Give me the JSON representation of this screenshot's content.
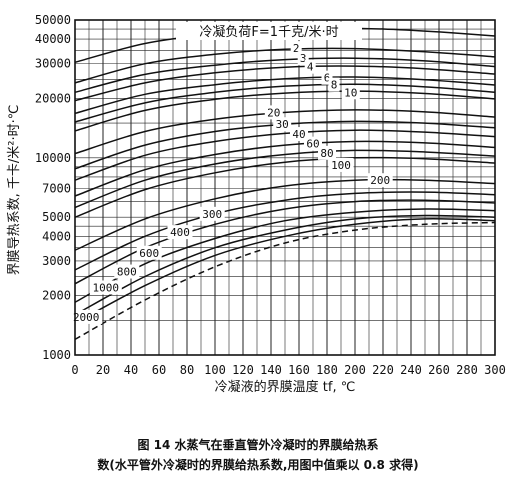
{
  "chart_data": {
    "type": "line",
    "title": "冷凝负荷F=1千克/米·时",
    "xlabel": "冷凝液的界膜温度 tf, ℃",
    "ylabel": "界膜导热系数, 千卡/米²·时·℃",
    "y_scale": "log",
    "xlim": [
      0,
      300
    ],
    "ylim": [
      1000,
      50000
    ],
    "x_ticks": [
      "0",
      "20",
      "40",
      "60",
      "80",
      "100",
      "120",
      "140",
      "160",
      "180",
      "200",
      "220",
      "240",
      "260",
      "280",
      "300"
    ],
    "y_ticks": [
      {
        "value": 1000,
        "label": "1000"
      },
      {
        "value": 2000,
        "label": "2000"
      },
      {
        "value": 3000,
        "label": "3000"
      },
      {
        "value": 4000,
        "label": "4000"
      },
      {
        "value": 5000,
        "label": "5000"
      },
      {
        "value": 7000,
        "label": "7000"
      },
      {
        "value": 10000,
        "label": "10000"
      },
      {
        "value": 20000,
        "label": "20000"
      },
      {
        "value": 30000,
        "label": "30000"
      },
      {
        "value": 40000,
        "label": "40000"
      },
      {
        "value": 50000,
        "label": "50000"
      }
    ],
    "grid": true,
    "series": [
      {
        "name": "1",
        "style": "solid",
        "x": [
          0,
          50,
          100,
          150,
          180,
          220,
          260,
          300
        ],
        "y": [
          30500,
          38000,
          42500,
          45000,
          45500,
          45000,
          43500,
          41500
        ]
      },
      {
        "name": "2",
        "style": "solid",
        "x": [
          0,
          50,
          100,
          150,
          200,
          250,
          300
        ],
        "y": [
          24000,
          30000,
          33500,
          35500,
          35800,
          34500,
          32500
        ]
      },
      {
        "name": "3",
        "style": "solid",
        "x": [
          0,
          50,
          100,
          150,
          200,
          250,
          300
        ],
        "y": [
          21500,
          26500,
          29500,
          31500,
          32000,
          31000,
          29000
        ]
      },
      {
        "name": "4",
        "style": "solid",
        "x": [
          0,
          50,
          100,
          150,
          200,
          250,
          300
        ],
        "y": [
          19500,
          24000,
          27000,
          28800,
          29200,
          28300,
          26600
        ]
      },
      {
        "name": "6",
        "style": "solid",
        "x": [
          0,
          50,
          100,
          150,
          200,
          250,
          300
        ],
        "y": [
          16800,
          21000,
          23500,
          25200,
          25700,
          24900,
          23400
        ]
      },
      {
        "name": "8",
        "style": "solid",
        "x": [
          0,
          50,
          100,
          150,
          200,
          250,
          300
        ],
        "y": [
          15200,
          19000,
          21500,
          23100,
          23600,
          22900,
          21500
        ]
      },
      {
        "name": "10",
        "style": "solid",
        "x": [
          0,
          50,
          100,
          150,
          200,
          250,
          300
        ],
        "y": [
          13700,
          17400,
          19800,
          21300,
          21800,
          21200,
          19900
        ]
      },
      {
        "name": "20",
        "style": "solid",
        "x": [
          0,
          50,
          100,
          150,
          200,
          250,
          300
        ],
        "y": [
          10500,
          13600,
          15700,
          17000,
          17500,
          17100,
          16100
        ]
      },
      {
        "name": "30",
        "style": "solid",
        "x": [
          0,
          50,
          100,
          150,
          200,
          250,
          300
        ],
        "y": [
          8800,
          11600,
          13600,
          14800,
          15300,
          15000,
          14200
        ]
      },
      {
        "name": "40",
        "style": "solid",
        "x": [
          0,
          50,
          100,
          150,
          200,
          250,
          300
        ],
        "y": [
          7700,
          10300,
          12100,
          13300,
          13800,
          13500,
          12800
        ]
      },
      {
        "name": "60",
        "style": "solid",
        "x": [
          0,
          50,
          100,
          150,
          200,
          250,
          300
        ],
        "y": [
          6400,
          8700,
          10400,
          11600,
          12100,
          11900,
          11300
        ]
      },
      {
        "name": "80",
        "style": "solid",
        "x": [
          0,
          50,
          100,
          150,
          200,
          250,
          300
        ],
        "y": [
          5600,
          7700,
          9300,
          10400,
          10900,
          10700,
          10200
        ]
      },
      {
        "name": "100",
        "style": "solid",
        "x": [
          0,
          50,
          100,
          150,
          200,
          250,
          300
        ],
        "y": [
          5000,
          6900,
          8400,
          9500,
          10000,
          9900,
          9400
        ]
      },
      {
        "name": "200",
        "style": "solid",
        "x": [
          0,
          50,
          100,
          150,
          200,
          250,
          300
        ],
        "y": [
          3400,
          4900,
          6200,
          7200,
          7700,
          7700,
          7400
        ]
      },
      {
        "name": "300",
        "style": "solid",
        "x": [
          0,
          50,
          100,
          150,
          200,
          250,
          300
        ],
        "y": [
          2700,
          4000,
          5200,
          6100,
          6600,
          6700,
          6500
        ]
      },
      {
        "name": "400",
        "style": "solid",
        "x": [
          0,
          50,
          100,
          150,
          200,
          250,
          300
        ],
        "y": [
          2300,
          3500,
          4600,
          5500,
          6000,
          6100,
          5900
        ]
      },
      {
        "name": "600",
        "style": "solid",
        "x": [
          0,
          50,
          100,
          150,
          200,
          250,
          300
        ],
        "y": [
          1850,
          2900,
          3900,
          4800,
          5300,
          5500,
          5400
        ]
      },
      {
        "name": "800",
        "style": "solid",
        "x": [
          0,
          50,
          100,
          150,
          200,
          250,
          300
        ],
        "y": [
          1600,
          2500,
          3500,
          4300,
          4900,
          5100,
          5000
        ]
      },
      {
        "name": "1000",
        "style": "solid",
        "x": [
          0,
          50,
          100,
          150,
          200,
          250,
          300
        ],
        "y": [
          1450,
          2250,
          3200,
          4000,
          4600,
          4900,
          4800
        ]
      },
      {
        "name": "2000",
        "style": "dashed",
        "x": [
          0,
          50,
          100,
          150,
          200,
          250,
          300
        ],
        "y": [
          1200,
          1900,
          2800,
          3700,
          4300,
          4600,
          4700
        ]
      }
    ],
    "curve_labels": [
      {
        "text": "2",
        "x": 158,
        "y": 36000
      },
      {
        "text": "3",
        "x": 163,
        "y": 32000
      },
      {
        "text": "4",
        "x": 168,
        "y": 29000
      },
      {
        "text": "6",
        "x": 180,
        "y": 25500
      },
      {
        "text": "8",
        "x": 185,
        "y": 23500
      },
      {
        "text": "10",
        "x": 197,
        "y": 21500
      },
      {
        "text": "20",
        "x": 142,
        "y": 17000
      },
      {
        "text": "30",
        "x": 148,
        "y": 14800
      },
      {
        "text": "40",
        "x": 160,
        "y": 13200
      },
      {
        "text": "60",
        "x": 170,
        "y": 11800
      },
      {
        "text": "80",
        "x": 180,
        "y": 10600
      },
      {
        "text": "100",
        "x": 190,
        "y": 9200
      },
      {
        "text": "200",
        "x": 218,
        "y": 7700
      },
      {
        "text": "300",
        "x": 98,
        "y": 5200
      },
      {
        "text": "400",
        "x": 75,
        "y": 4200
      },
      {
        "text": "600",
        "x": 53,
        "y": 3300
      },
      {
        "text": "800",
        "x": 37,
        "y": 2650
      },
      {
        "text": "1000",
        "x": 22,
        "y": 2200
      },
      {
        "text": "2000",
        "x": 8,
        "y": 1560
      }
    ]
  },
  "caption": {
    "line1": "图 14  水蒸气在垂直管外冷凝时的界膜给热系",
    "line2": "数(水平管外冷凝时的界膜给热系数,用图中值乘以 0.8 求得)"
  }
}
